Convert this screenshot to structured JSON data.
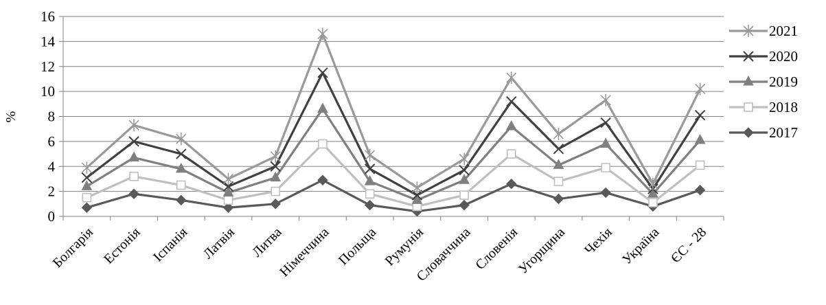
{
  "chart_data": {
    "type": "line",
    "title": "",
    "xlabel": "",
    "ylabel": "%",
    "ylim": [
      0,
      16
    ],
    "yticks": [
      "0",
      "2",
      "4",
      "6",
      "8",
      "10",
      "12",
      "14",
      "16"
    ],
    "grid": "horizontal",
    "legend_position": "right",
    "categories": [
      "Болгарія",
      "Естонія",
      "Іспанія",
      "Латвія",
      "Литва",
      "Німеччина",
      "Польща",
      "Румунія",
      "Словаччина",
      "Словенія",
      "Угорщина",
      "Чехія",
      "Україна",
      "ЄС - 28"
    ],
    "series": [
      {
        "name": "2021",
        "color": "#999999",
        "marker": "asterisk",
        "values": [
          3.9,
          7.3,
          6.2,
          3.0,
          4.8,
          14.6,
          4.9,
          2.3,
          4.6,
          11.1,
          6.6,
          9.3,
          2.6,
          10.2
        ]
      },
      {
        "name": "2020",
        "color": "#404040",
        "marker": "x",
        "values": [
          3.1,
          6.0,
          5.0,
          2.4,
          4.0,
          11.5,
          3.8,
          1.7,
          3.7,
          9.2,
          5.4,
          7.5,
          2.2,
          8.1
        ]
      },
      {
        "name": "2019",
        "color": "#7f7f7f",
        "marker": "triangle",
        "values": [
          2.4,
          4.7,
          3.8,
          1.9,
          3.1,
          8.6,
          2.8,
          1.3,
          2.9,
          7.2,
          4.1,
          5.8,
          1.8,
          6.1
        ]
      },
      {
        "name": "2018",
        "color": "#bfbfbf",
        "marker": "square",
        "values": [
          1.5,
          3.2,
          2.5,
          1.3,
          2.0,
          5.8,
          1.8,
          0.8,
          1.7,
          5.0,
          2.8,
          3.9,
          1.1,
          4.1
        ]
      },
      {
        "name": "2017",
        "color": "#595959",
        "marker": "diamond",
        "values": [
          0.7,
          1.8,
          1.3,
          0.7,
          1.0,
          2.9,
          0.9,
          0.4,
          0.9,
          2.6,
          1.4,
          1.9,
          0.8,
          2.1
        ]
      }
    ]
  }
}
